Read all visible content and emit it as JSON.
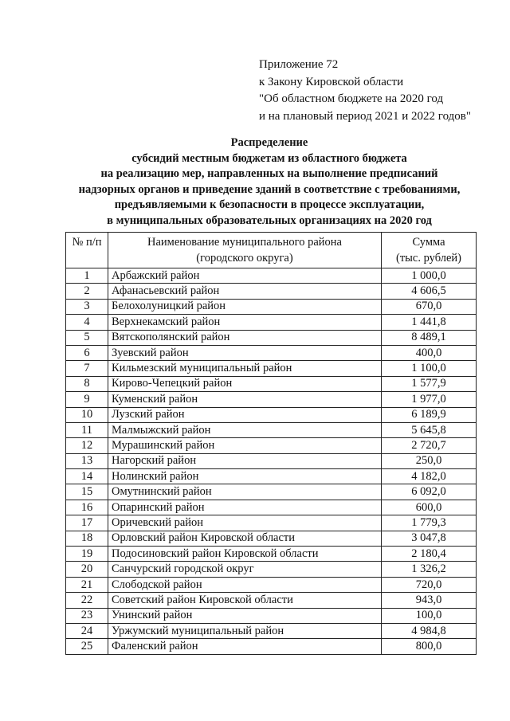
{
  "appendix": {
    "lines": [
      "Приложение 72",
      "к Закону Кировской области",
      "\"Об областном бюджете на 2020 год",
      "и на плановый период 2021 и 2022 годов\""
    ]
  },
  "title": {
    "lines": [
      "Распределение",
      "субсидий местным бюджетам из областного бюджета",
      "на реализацию мер, направленных на выполнение предписаний",
      "надзорных органов и приведение зданий в соответствие с требованиями,",
      "предъявляемыми к безопасности в процессе эксплуатации,",
      "в муниципальных образовательных организациях на 2020 год"
    ]
  },
  "table": {
    "headers": [
      "№ п/п",
      "Наименование муниципального района (городского округа)",
      "Сумма (тыс. рублей)"
    ],
    "rows": [
      [
        "1",
        "Арбажский район",
        "1 000,0"
      ],
      [
        "2",
        "Афанасьевский район",
        "4 606,5"
      ],
      [
        "3",
        "Белохолуницкий район",
        "670,0"
      ],
      [
        "4",
        "Верхнекамский район",
        "1 441,8"
      ],
      [
        "5",
        "Вятскополянский район",
        "8 489,1"
      ],
      [
        "6",
        "Зуевский район",
        "400,0"
      ],
      [
        "7",
        "Кильмезский муниципальный район",
        "1 100,0"
      ],
      [
        "8",
        "Кирово-Чепецкий район",
        "1 577,9"
      ],
      [
        "9",
        "Куменский район",
        "1 977,0"
      ],
      [
        "10",
        "Лузский район",
        "6 189,9"
      ],
      [
        "11",
        "Малмыжский район",
        "5 645,8"
      ],
      [
        "12",
        "Мурашинский район",
        "2 720,7"
      ],
      [
        "13",
        "Нагорский район",
        "250,0"
      ],
      [
        "14",
        "Нолинский район",
        "4 182,0"
      ],
      [
        "15",
        "Омутнинский район",
        "6 092,0"
      ],
      [
        "16",
        "Опаринский район",
        "600,0"
      ],
      [
        "17",
        "Оричевский район",
        "1 779,3"
      ],
      [
        "18",
        "Орловский район Кировской области",
        "3 047,8"
      ],
      [
        "19",
        "Подосиновский район Кировской области",
        "2 180,4"
      ],
      [
        "20",
        "Санчурский городской округ",
        "1 326,2"
      ],
      [
        "21",
        "Слободской район",
        "720,0"
      ],
      [
        "22",
        "Советский район Кировской области",
        "943,0"
      ],
      [
        "23",
        "Унинский район",
        "100,0"
      ],
      [
        "24",
        "Уржумский муниципальный район",
        "4 984,8"
      ],
      [
        "25",
        "Фаленский район",
        "800,0"
      ]
    ]
  }
}
